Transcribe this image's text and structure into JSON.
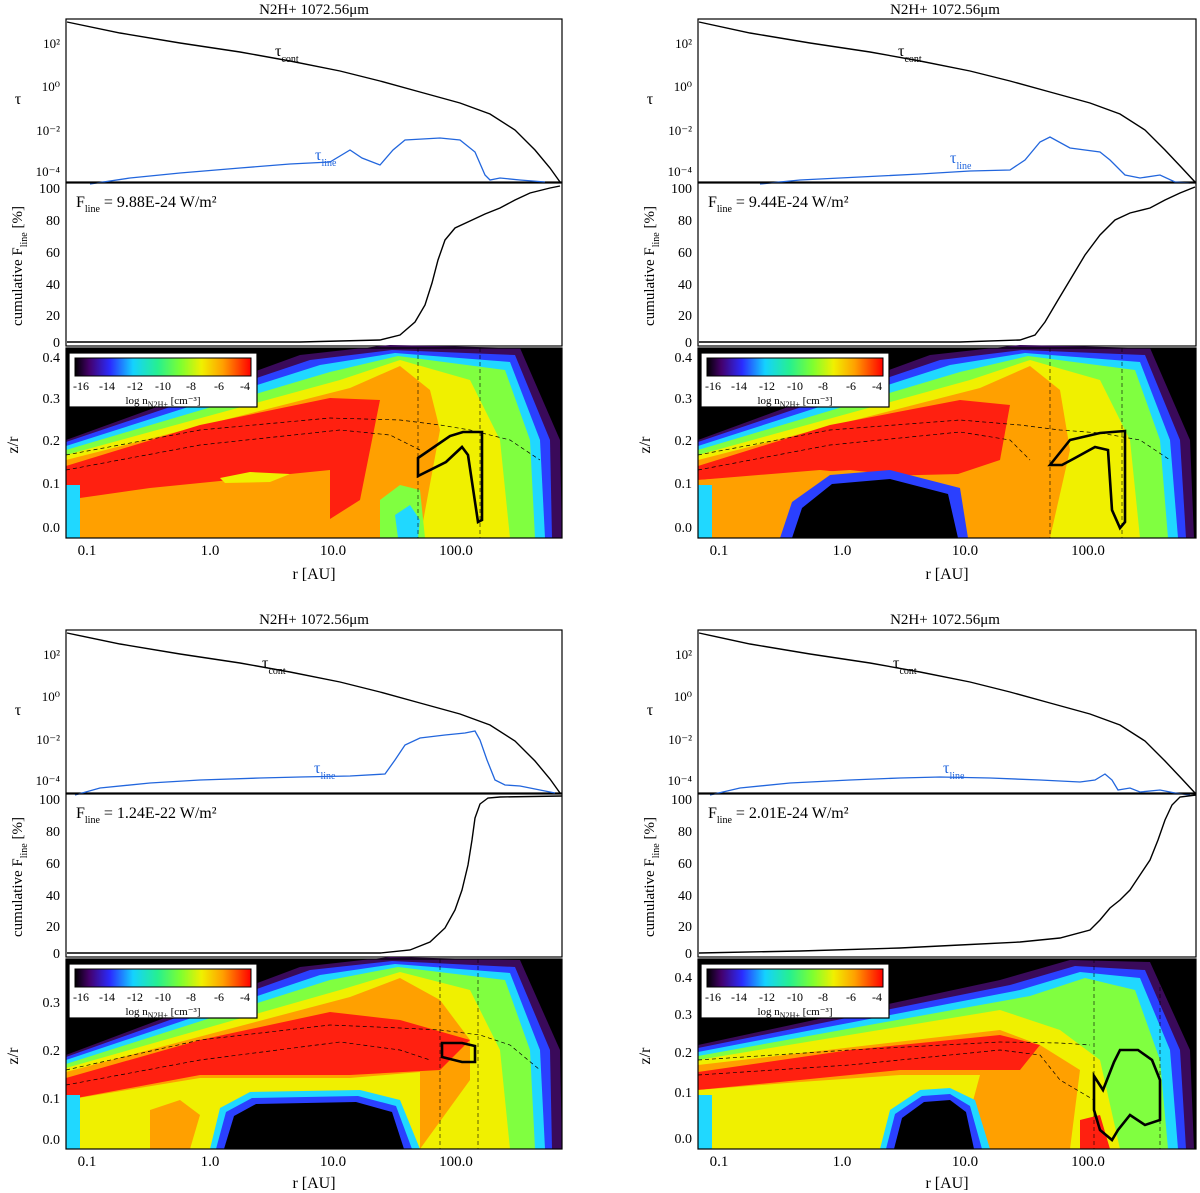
{
  "colors": {
    "tau_cont": "#000000",
    "tau_line": "#2266dd",
    "cumulative": "#000000",
    "contour": "#000000",
    "background": "#ffffff"
  },
  "common": {
    "tau_ylabel": "τ",
    "tau_cont_label": "τ",
    "tau_cont_sub": "cont",
    "tau_line_label": "τ",
    "tau_line_sub": "line",
    "cum_ylabel_prefix": "cumulative F",
    "cum_ylabel_sub": "line",
    "cum_ylabel_suffix": " [%]",
    "flux_prefix": "F",
    "flux_sub": "line",
    "zr_ylabel": "z/r",
    "xlabel": "r [AU]",
    "x_ticks": [
      "0.1",
      "1.0",
      "10.0",
      "100.0"
    ],
    "tau_ticks": [
      "10²",
      "10⁰",
      "10⁻²",
      "10⁻⁴"
    ],
    "cum_ticks": [
      "0",
      "20",
      "40",
      "60",
      "80",
      "100"
    ],
    "colorbar_ticks": [
      "-16",
      "-14",
      "-12",
      "-10",
      "-8",
      "-6",
      "-4"
    ],
    "colorbar_label_prefix": "log n",
    "colorbar_label_sub": "N2H+",
    "colorbar_label_suffix": " [cm⁻³]"
  },
  "chart_data": [
    {
      "type": "line",
      "title": "N2H+ 1072.56μm",
      "flux_text": " = 9.88E-24 W/m²",
      "xlim": [
        0.07,
        700
      ],
      "xscale": "log",
      "tau_ylim_log10": [
        -4.5,
        3.3
      ],
      "zr_ylim": [
        -0.02,
        0.43
      ],
      "zr_ticks": [
        "0.0",
        "0.1",
        "0.2",
        "0.3",
        "0.4"
      ],
      "series": [
        {
          "name": "τ cont",
          "x": [
            0.07,
            0.2,
            1,
            5,
            20,
            100,
            200,
            400,
            700
          ],
          "log10_y": [
            2.8,
            2.3,
            1.6,
            0.9,
            0.3,
            -0.5,
            -1.2,
            -2.6,
            -4.5
          ]
        },
        {
          "name": "τ line",
          "x": [
            0.07,
            0.2,
            0.5,
            2,
            8,
            12,
            15,
            20,
            25,
            40,
            60,
            90,
            120,
            160,
            200,
            250,
            280,
            350,
            450,
            600
          ],
          "log10_y": [
            -4.6,
            -4.4,
            -4.2,
            -4.0,
            -3.8,
            -3.7,
            -3.3,
            -3.6,
            -3.7,
            -2.6,
            -2.3,
            -2.3,
            -2.5,
            -3.0,
            -3.3,
            -3.5,
            -4.4,
            -4.5,
            -4.4,
            -4.6
          ]
        },
        {
          "name": "cumulative F line",
          "x": [
            0.07,
            10,
            30,
            50,
            60,
            70,
            80,
            100,
            150,
            250,
            400,
            700
          ],
          "y": [
            0,
            0,
            0.5,
            5,
            20,
            45,
            68,
            75,
            82,
            88,
            96,
            100
          ]
        }
      ],
      "contour": {
        "x": [
          50,
          100,
          140,
          165,
          170,
          140,
          130,
          120,
          60,
          50,
          50
        ],
        "zr": [
          0.13,
          0.21,
          0.23,
          0.23,
          0.03,
          0.1,
          0.2,
          0.19,
          0.16,
          0.15,
          0.13
        ]
      }
    },
    {
      "type": "line",
      "title": "N2H+ 1072.56μm",
      "flux_text": " = 9.44E-24 W/m²",
      "xlim": [
        0.07,
        700
      ],
      "xscale": "log",
      "tau_ylim_log10": [
        -4.5,
        3.3
      ],
      "zr_ylim": [
        -0.02,
        0.43
      ],
      "zr_ticks": [
        "0.0",
        "0.1",
        "0.2",
        "0.3",
        "0.4"
      ],
      "series": [
        {
          "name": "τ cont",
          "x": [
            0.07,
            0.2,
            1,
            5,
            20,
            100,
            200,
            400,
            700
          ],
          "log10_y": [
            2.8,
            2.3,
            1.6,
            0.9,
            0.3,
            -0.5,
            -1.2,
            -2.6,
            -4.5
          ]
        },
        {
          "name": "τ line",
          "x": [
            0.07,
            0.2,
            0.5,
            2,
            8,
            20,
            30,
            40,
            50,
            70,
            100,
            150,
            200,
            250,
            300,
            400,
            600
          ],
          "log10_y": [
            -4.7,
            -4.6,
            -4.4,
            -4.2,
            -4.0,
            -3.8,
            -3.6,
            -2.8,
            -2.4,
            -2.8,
            -3.0,
            -3.3,
            -4.0,
            -4.5,
            -4.2,
            -4.5,
            -4.7
          ]
        },
        {
          "name": "cumulative F line",
          "x": [
            0.07,
            10,
            30,
            40,
            50,
            60,
            80,
            100,
            150,
            250,
            400,
            700
          ],
          "y": [
            0,
            0,
            1,
            5,
            18,
            35,
            55,
            70,
            83,
            88,
            96,
            100
          ]
        }
      ],
      "contour": {
        "x": [
          50,
          80,
          120,
          180,
          180,
          160,
          150,
          140,
          100,
          70,
          60,
          50,
          50
        ],
        "zr": [
          0.16,
          0.22,
          0.23,
          0.24,
          0.05,
          0.01,
          0.1,
          0.2,
          0.19,
          0.16,
          0.16,
          0.16,
          0.16
        ]
      }
    },
    {
      "type": "line",
      "title": "N2H+ 1072.56μm",
      "flux_text": " = 1.24E-22 W/m²",
      "xlim": [
        0.07,
        700
      ],
      "xscale": "log",
      "tau_ylim_log10": [
        -4.5,
        3.3
      ],
      "zr_ylim": [
        -0.02,
        0.38
      ],
      "zr_ticks": [
        "0.0",
        "0.1",
        "0.2",
        "0.3"
      ],
      "series": [
        {
          "name": "τ cont",
          "x": [
            0.07,
            0.2,
            1,
            5,
            20,
            100,
            200,
            400,
            700
          ],
          "log10_y": [
            2.8,
            2.3,
            1.6,
            0.9,
            0.3,
            -0.5,
            -1.2,
            -2.6,
            -4.5
          ]
        },
        {
          "name": "τ line",
          "x": [
            0.07,
            0.2,
            0.5,
            2,
            8,
            30,
            40,
            60,
            100,
            140,
            160,
            200,
            250,
            400,
            600
          ],
          "log10_y": [
            -4.7,
            -4.4,
            -4.2,
            -4.0,
            -3.8,
            -3.6,
            -3.0,
            -2.2,
            -1.8,
            -1.6,
            -2.2,
            -3.6,
            -4.2,
            -4.5,
            -4.7
          ]
        },
        {
          "name": "cumulative F line",
          "x": [
            0.07,
            10,
            40,
            60,
            80,
            100,
            120,
            140,
            160,
            200,
            700
          ],
          "y": [
            0,
            0,
            0.5,
            3,
            10,
            25,
            55,
            90,
            98,
            99.5,
            100
          ]
        }
      ],
      "contour": {
        "x": [
          80,
          120,
          140,
          140,
          120,
          80,
          80
        ],
        "zr": [
          0.2,
          0.2,
          0.19,
          0.16,
          0.16,
          0.18,
          0.2
        ]
      }
    },
    {
      "type": "line",
      "title": "N2H+ 1072.56μm",
      "flux_text": " = 2.01E-24 W/m²",
      "xlim": [
        0.07,
        700
      ],
      "xscale": "log",
      "tau_ylim_log10": [
        -4.5,
        3.3
      ],
      "zr_ylim": [
        -0.02,
        0.47
      ],
      "zr_ticks": [
        "0.0",
        "0.1",
        "0.2",
        "0.3",
        "0.4"
      ],
      "series": [
        {
          "name": "τ cont",
          "x": [
            0.07,
            0.2,
            1,
            5,
            20,
            100,
            200,
            400,
            700
          ],
          "log10_y": [
            2.8,
            2.3,
            1.6,
            0.9,
            0.3,
            -0.5,
            -1.2,
            -2.6,
            -4.5
          ]
        },
        {
          "name": "τ line",
          "x": [
            0.07,
            0.2,
            0.5,
            2,
            8,
            30,
            60,
            100,
            130,
            150,
            170,
            200,
            300,
            500,
            700
          ],
          "log10_y": [
            -4.7,
            -4.4,
            -4.2,
            -4.0,
            -3.9,
            -4.0,
            -4.1,
            -4.2,
            -4.1,
            -3.5,
            -4.2,
            -4.5,
            -4.4,
            -4.6,
            -4.8
          ]
        },
        {
          "name": "cumulative F line",
          "x": [
            0.07,
            10,
            30,
            80,
            110,
            130,
            150,
            200,
            250,
            300,
            350,
            450,
            700
          ],
          "y": [
            0,
            1,
            4,
            10,
            15,
            22,
            30,
            40,
            55,
            70,
            90,
            100,
            100
          ]
        }
      ],
      "contour": {
        "x": [
          130,
          150,
          170,
          200,
          250,
          300,
          380,
          400,
          300,
          260,
          200,
          150,
          130,
          130
        ],
        "zr": [
          0.14,
          0.11,
          0.22,
          0.24,
          0.23,
          0.2,
          0.18,
          0.05,
          0.04,
          0.1,
          0.04,
          0.0,
          0.08,
          0.14
        ]
      }
    }
  ]
}
